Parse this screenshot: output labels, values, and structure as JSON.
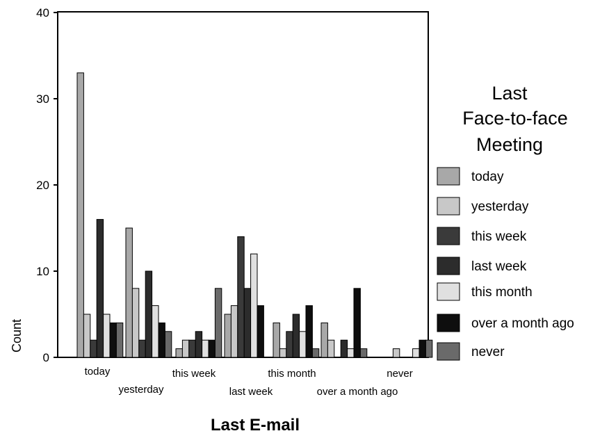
{
  "chart_data": {
    "type": "bar",
    "xlabel": "Last E-mail",
    "ylabel": "Count",
    "ylim": [
      0,
      40
    ],
    "yticks": [
      0,
      10,
      20,
      30,
      40
    ],
    "categories": [
      "today",
      "yesterday",
      "this week",
      "last week",
      "this month",
      "over a month ago",
      "never"
    ],
    "legend": {
      "title_lines": [
        "Last",
        "Face-to-face",
        "Meeting"
      ],
      "placement": "right"
    },
    "grid": false,
    "series": [
      {
        "name": "today",
        "color": "#a8a8a8",
        "values": [
          33,
          15,
          1,
          5,
          4,
          4,
          0
        ]
      },
      {
        "name": "yesterday",
        "color": "#c8c8c8",
        "values": [
          5,
          8,
          2,
          6,
          1,
          2,
          1
        ]
      },
      {
        "name": "this week",
        "color": "#3a3a3a",
        "values": [
          2,
          2,
          2,
          14,
          3,
          0,
          0
        ]
      },
      {
        "name": "last week",
        "color": "#2c2c2c",
        "values": [
          16,
          10,
          3,
          8,
          5,
          2,
          0
        ]
      },
      {
        "name": "this month",
        "color": "#e0e0e0",
        "values": [
          5,
          6,
          2,
          12,
          3,
          1,
          1
        ]
      },
      {
        "name": "over a month ago",
        "color": "#0e0e0e",
        "values": [
          4,
          4,
          2,
          6,
          6,
          8,
          2
        ]
      },
      {
        "name": "never",
        "color": "#6a6a6a",
        "values": [
          4,
          3,
          8,
          0,
          1,
          1,
          2
        ]
      }
    ]
  }
}
